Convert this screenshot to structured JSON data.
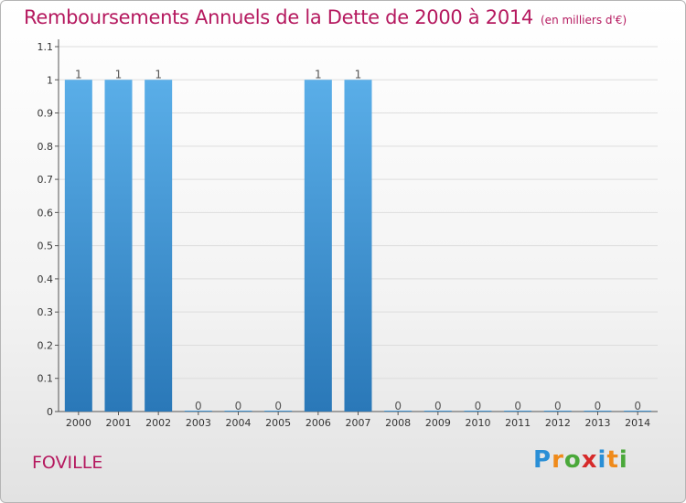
{
  "page": {
    "title": "Remboursements Annuels de la Dette de 2000 à 2014",
    "title_unit": "(en milliers d'€)",
    "city": "FOVILLE",
    "logo_letters": [
      "P",
      "r",
      "o",
      "x",
      "i",
      "t",
      "i"
    ]
  },
  "chart_data": {
    "type": "bar",
    "title": "Remboursements Annuels de la Dette de 2000 à 2014",
    "subtitle": "(en milliers d'€)",
    "categories": [
      "2000",
      "2001",
      "2002",
      "2003",
      "2004",
      "2005",
      "2006",
      "2007",
      "2008",
      "2009",
      "2010",
      "2011",
      "2012",
      "2013",
      "2014"
    ],
    "values": [
      1,
      1,
      1,
      0,
      0,
      0,
      1,
      1,
      0,
      0,
      0,
      0,
      0,
      0,
      0
    ],
    "value_labels": [
      "1",
      "1",
      "1",
      "0",
      "0",
      "0",
      "1",
      "1",
      "0",
      "0",
      "0",
      "0",
      "0",
      "0",
      "0"
    ],
    "y_ticks": [
      0,
      0.1,
      0.2,
      0.3,
      0.4,
      0.5,
      0.6,
      0.7,
      0.8,
      0.9,
      1,
      1.1
    ],
    "y_tick_labels": [
      "0",
      "0.1",
      "0.2",
      "0.3",
      "0.4",
      "0.5",
      "0.6",
      "0.7",
      "0.8",
      "0.9",
      "1",
      "1.1"
    ],
    "ylim": [
      0,
      1.1
    ],
    "grid": true,
    "legend": "none",
    "colors": {
      "bar_top": "#5aaee8",
      "bar_bottom": "#2a78b8",
      "grid": "#dddddd",
      "title": "#b5195f"
    }
  }
}
